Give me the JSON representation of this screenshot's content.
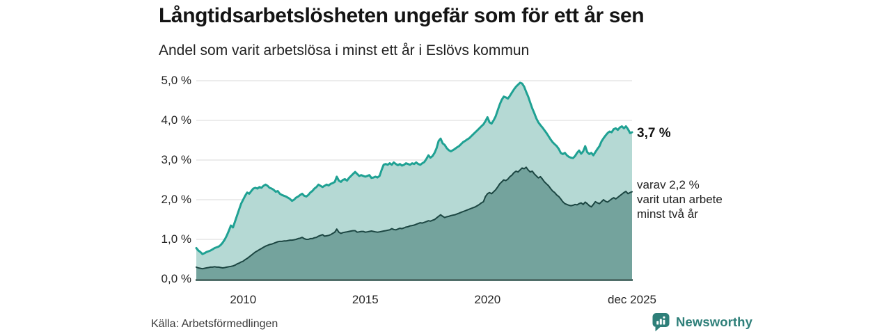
{
  "header": {
    "title": "Långtidsarbetslösheten ungefär som för ett år sen",
    "subtitle": "Andel som varit arbetslösa i minst ett år i Eslövs kommun"
  },
  "chart_data": {
    "type": "area",
    "title": "Långtidsarbetslösheten ungefär som för ett år sen",
    "subtitle": "Andel som varit arbetslösa i minst ett år i Eslövs kommun",
    "xlabel": "",
    "ylabel": "",
    "ylim": [
      0,
      5
    ],
    "x_start": 2008.083,
    "x_step_months": 1,
    "x_end": 2025.917,
    "grid": true,
    "grid_color": "#d9d9d9",
    "axis_color": "#4f6e69",
    "y_ticks": [
      {
        "v": 0,
        "label": "0,0 %"
      },
      {
        "v": 1,
        "label": "1,0 %"
      },
      {
        "v": 2,
        "label": "2,0 %"
      },
      {
        "v": 3,
        "label": "3,0 %"
      },
      {
        "v": 4,
        "label": "4,0 %"
      },
      {
        "v": 5,
        "label": "5,0 %"
      }
    ],
    "x_ticks": [
      {
        "t": 2010,
        "label": "2010"
      },
      {
        "t": 2015,
        "label": "2015"
      },
      {
        "t": 2020,
        "label": "2020"
      },
      {
        "t": 2025.917,
        "label": "dec 2025"
      }
    ],
    "series": [
      {
        "name": "Andel arbetslösa minst ett år",
        "line_color": "#1fa193",
        "fill_color": "#b5d9d4",
        "end_label": "3,7 %",
        "last_value": 3.7,
        "values": [
          0.78,
          0.72,
          0.68,
          0.63,
          0.65,
          0.68,
          0.7,
          0.72,
          0.75,
          0.78,
          0.8,
          0.82,
          0.86,
          0.92,
          1.0,
          1.1,
          1.22,
          1.35,
          1.3,
          1.45,
          1.6,
          1.75,
          1.9,
          2.0,
          2.1,
          2.18,
          2.15,
          2.22,
          2.28,
          2.3,
          2.28,
          2.32,
          2.3,
          2.35,
          2.38,
          2.35,
          2.3,
          2.28,
          2.25,
          2.2,
          2.22,
          2.15,
          2.12,
          2.1,
          2.08,
          2.05,
          2.02,
          1.97,
          2.0,
          2.05,
          2.08,
          2.12,
          2.15,
          2.1,
          2.08,
          2.12,
          2.18,
          2.22,
          2.28,
          2.32,
          2.38,
          2.35,
          2.32,
          2.35,
          2.38,
          2.36,
          2.4,
          2.42,
          2.45,
          2.58,
          2.48,
          2.45,
          2.5,
          2.52,
          2.48,
          2.55,
          2.6,
          2.65,
          2.7,
          2.65,
          2.6,
          2.62,
          2.6,
          2.58,
          2.6,
          2.62,
          2.55,
          2.56,
          2.58,
          2.56,
          2.6,
          2.75,
          2.88,
          2.9,
          2.88,
          2.92,
          2.88,
          2.94,
          2.9,
          2.87,
          2.9,
          2.86,
          2.88,
          2.92,
          2.9,
          2.88,
          2.92,
          2.9,
          2.94,
          2.9,
          2.88,
          2.92,
          2.95,
          3.03,
          3.12,
          3.06,
          3.1,
          3.18,
          3.3,
          3.48,
          3.54,
          3.42,
          3.38,
          3.3,
          3.25,
          3.22,
          3.25,
          3.28,
          3.32,
          3.35,
          3.4,
          3.45,
          3.48,
          3.52,
          3.55,
          3.6,
          3.65,
          3.7,
          3.75,
          3.8,
          3.85,
          3.9,
          3.98,
          4.08,
          3.95,
          3.92,
          4.0,
          4.1,
          4.25,
          4.4,
          4.52,
          4.6,
          4.58,
          4.55,
          4.62,
          4.7,
          4.78,
          4.85,
          4.9,
          4.95,
          4.93,
          4.85,
          4.72,
          4.6,
          4.45,
          4.3,
          4.18,
          4.05,
          3.95,
          3.88,
          3.82,
          3.75,
          3.68,
          3.6,
          3.52,
          3.45,
          3.4,
          3.35,
          3.28,
          3.18,
          3.15,
          3.18,
          3.12,
          3.08,
          3.06,
          3.05,
          3.1,
          3.18,
          3.24,
          3.16,
          3.22,
          3.35,
          3.2,
          3.15,
          3.18,
          3.12,
          3.2,
          3.28,
          3.35,
          3.47,
          3.55,
          3.62,
          3.68,
          3.72,
          3.7,
          3.78,
          3.8,
          3.76,
          3.82,
          3.85,
          3.8,
          3.85,
          3.78,
          3.68,
          3.7
        ]
      },
      {
        "name": "varav utan arbete minst två år",
        "line_color": "#1c4642",
        "fill_color": "#74a39d",
        "end_label_lines": [
          "varav 2,2 %",
          "varit utan arbete",
          "minst två år"
        ],
        "last_value": 2.2,
        "values": [
          0.3,
          0.28,
          0.27,
          0.26,
          0.27,
          0.28,
          0.29,
          0.3,
          0.3,
          0.31,
          0.3,
          0.3,
          0.29,
          0.28,
          0.29,
          0.3,
          0.31,
          0.32,
          0.33,
          0.35,
          0.38,
          0.4,
          0.43,
          0.45,
          0.49,
          0.52,
          0.56,
          0.6,
          0.64,
          0.68,
          0.71,
          0.74,
          0.77,
          0.8,
          0.83,
          0.85,
          0.87,
          0.88,
          0.9,
          0.92,
          0.94,
          0.95,
          0.95,
          0.96,
          0.96,
          0.97,
          0.98,
          0.98,
          0.99,
          1.0,
          1.02,
          1.03,
          1.05,
          1.02,
          1.0,
          1.0,
          1.02,
          1.02,
          1.04,
          1.05,
          1.08,
          1.1,
          1.12,
          1.08,
          1.09,
          1.1,
          1.12,
          1.15,
          1.18,
          1.26,
          1.18,
          1.15,
          1.17,
          1.18,
          1.19,
          1.2,
          1.21,
          1.22,
          1.22,
          1.18,
          1.19,
          1.2,
          1.2,
          1.18,
          1.19,
          1.2,
          1.21,
          1.2,
          1.19,
          1.18,
          1.19,
          1.2,
          1.21,
          1.22,
          1.23,
          1.24,
          1.27,
          1.25,
          1.24,
          1.26,
          1.28,
          1.27,
          1.29,
          1.31,
          1.32,
          1.34,
          1.35,
          1.36,
          1.38,
          1.4,
          1.42,
          1.41,
          1.43,
          1.45,
          1.47,
          1.46,
          1.48,
          1.5,
          1.54,
          1.58,
          1.62,
          1.58,
          1.55,
          1.57,
          1.58,
          1.6,
          1.61,
          1.62,
          1.64,
          1.66,
          1.68,
          1.7,
          1.72,
          1.74,
          1.76,
          1.78,
          1.8,
          1.82,
          1.85,
          1.88,
          1.92,
          1.95,
          2.08,
          2.15,
          2.18,
          2.15,
          2.2,
          2.25,
          2.32,
          2.4,
          2.45,
          2.5,
          2.48,
          2.52,
          2.58,
          2.62,
          2.68,
          2.72,
          2.7,
          2.75,
          2.8,
          2.78,
          2.82,
          2.75,
          2.7,
          2.72,
          2.65,
          2.6,
          2.55,
          2.58,
          2.52,
          2.45,
          2.4,
          2.35,
          2.28,
          2.22,
          2.18,
          2.12,
          2.08,
          2.02,
          1.95,
          1.9,
          1.88,
          1.86,
          1.85,
          1.86,
          1.88,
          1.87,
          1.9,
          1.92,
          1.88,
          1.94,
          1.9,
          1.85,
          1.82,
          1.88,
          1.95,
          1.92,
          1.9,
          1.95,
          2.0,
          1.96,
          1.94,
          1.98,
          2.02,
          2.05,
          2.02,
          2.06,
          2.1,
          2.14,
          2.18,
          2.21,
          2.15,
          2.18,
          2.2
        ]
      }
    ]
  },
  "footer": {
    "source": "Källa: Arbetsförmedlingen",
    "brand": "Newsworthy",
    "brand_color": "#2e7f79"
  }
}
